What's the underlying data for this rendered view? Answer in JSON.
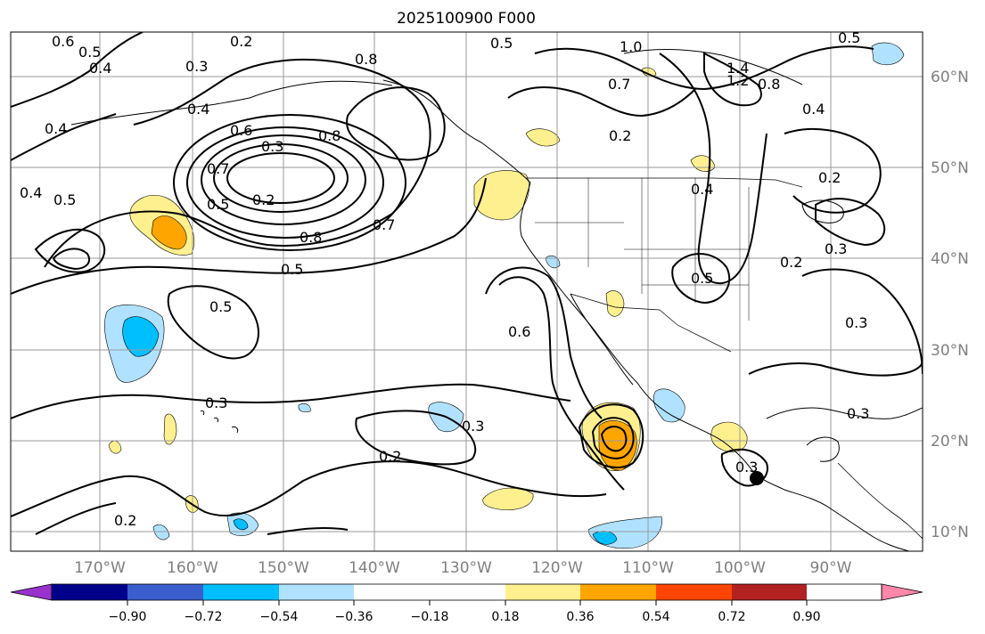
{
  "title": "2025100900 F000",
  "lon_labels": [
    "170°W",
    "160°W",
    "150°W",
    "140°W",
    "130°W",
    "120°W",
    "110°W",
    "100°W",
    "90°W"
  ],
  "lat_labels": [
    "60°N",
    "50°N",
    "40°N",
    "30°N",
    "20°N",
    "10°N"
  ],
  "colorbar": {
    "ticks": [
      "−0.90",
      "−0.72",
      "−0.54",
      "−0.36",
      "−0.18",
      "0.18",
      "0.36",
      "0.54",
      "0.72",
      "0.90"
    ],
    "colors": {
      "under": "#9932cc",
      "bins": [
        "#00008b",
        "#3a5fcd",
        "#00bfff",
        "#b0e2ff",
        "#ffffff",
        "#fff08f",
        "#ffa500",
        "#ff4500",
        "#b22222"
      ],
      "over": "#ff88aa"
    }
  },
  "contour_labels": [
    "0.6",
    "0.5",
    "0.4",
    "0.2",
    "0.3",
    "0.5",
    "0.8",
    "1.0",
    "0.7",
    "1.4",
    "1.2",
    "0.8",
    "0.4",
    "0.2",
    "0.4",
    "0.6",
    "0.3",
    "0.2",
    "0.8",
    "0.7",
    "0.5",
    "0.4",
    "0.5",
    "0.8",
    "0.7",
    "0.5",
    "0.5",
    "0.4",
    "0.2",
    "0.3",
    "0.3",
    "0.2",
    "0.6",
    "0.5",
    "0.3",
    "0.3",
    "0.2",
    "0.3",
    "0.3",
    "0.2",
    "0.4",
    "0.5"
  ],
  "marker": "black-dot"
}
